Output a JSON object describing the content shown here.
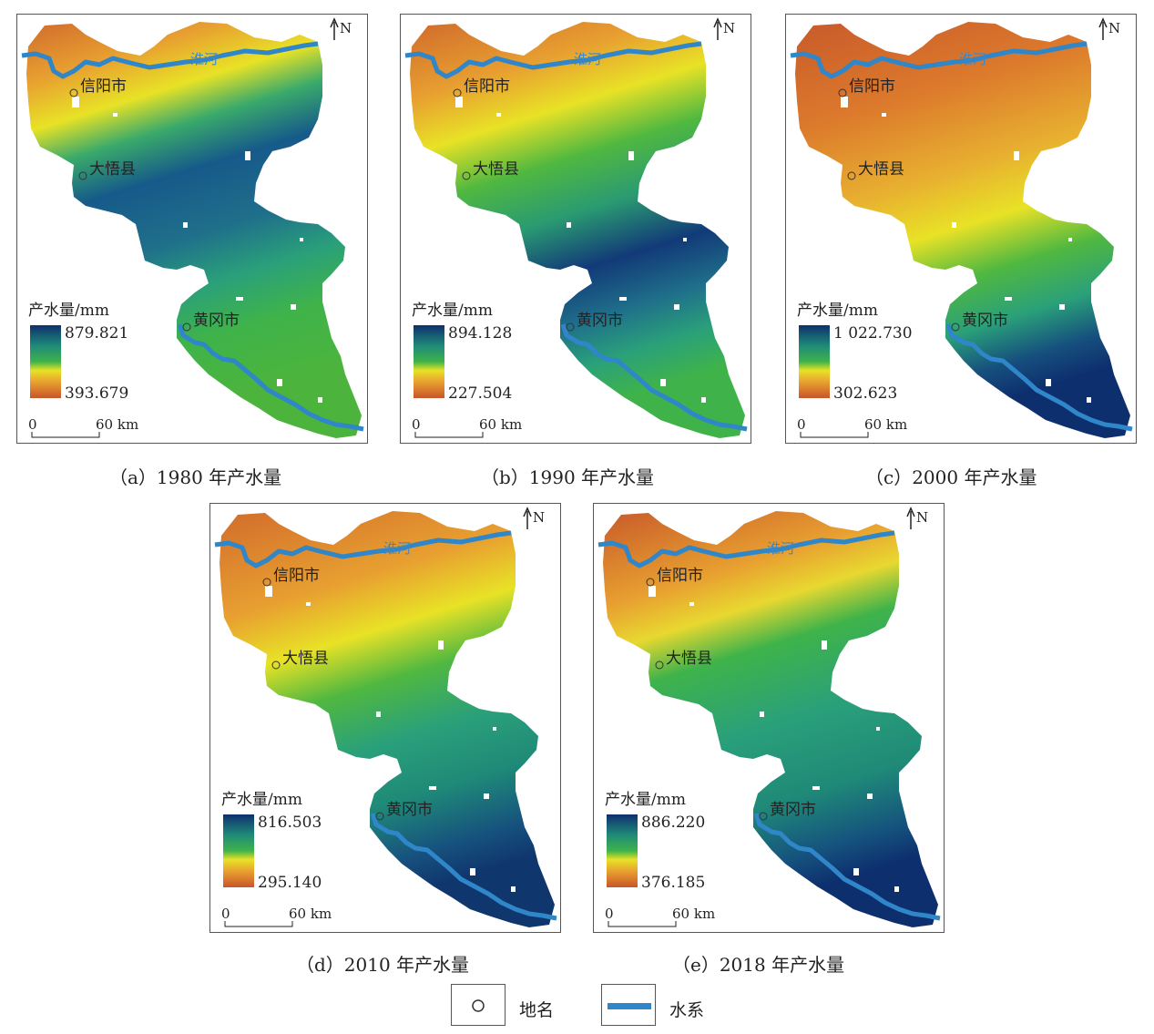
{
  "panels": [
    {
      "id": "a",
      "caption": "（a）1980 年产水量",
      "legend_title": "产水量/mm",
      "legend_max": "879.821",
      "legend_min": "393.679",
      "gradient": [
        [
          0,
          "#0e2f6e"
        ],
        [
          0.28,
          "#1f8a78"
        ],
        [
          0.5,
          "#3fb34a"
        ],
        [
          0.62,
          "#e8e226"
        ],
        [
          0.78,
          "#e8a030"
        ],
        [
          1,
          "#c8552a"
        ]
      ],
      "field": "a"
    },
    {
      "id": "b",
      "caption": "（b）1990 年产水量",
      "legend_title": "产水量/mm",
      "legend_max": "894.128",
      "legend_min": "227.504",
      "gradient": [
        [
          0,
          "#0e2f6e"
        ],
        [
          0.28,
          "#1f8a78"
        ],
        [
          0.5,
          "#3fb34a"
        ],
        [
          0.62,
          "#e8e226"
        ],
        [
          0.78,
          "#e8a030"
        ],
        [
          1,
          "#c8552a"
        ]
      ],
      "field": "b"
    },
    {
      "id": "c",
      "caption": "（c）2000 年产水量",
      "legend_title": "产水量/mm",
      "legend_max": "1 022.730",
      "legend_min": "302.623",
      "gradient": [
        [
          0,
          "#0e2f6e"
        ],
        [
          0.28,
          "#1f8a78"
        ],
        [
          0.5,
          "#3fb34a"
        ],
        [
          0.62,
          "#e8e226"
        ],
        [
          0.78,
          "#e8a030"
        ],
        [
          1,
          "#c8552a"
        ]
      ],
      "field": "c"
    },
    {
      "id": "d",
      "caption": "（d）2010 年产水量",
      "legend_title": "产水量/mm",
      "legend_max": "816.503",
      "legend_min": "295.140",
      "gradient": [
        [
          0,
          "#0e2f6e"
        ],
        [
          0.28,
          "#1f8a78"
        ],
        [
          0.5,
          "#3fb34a"
        ],
        [
          0.62,
          "#e8e226"
        ],
        [
          0.78,
          "#e8a030"
        ],
        [
          1,
          "#c8552a"
        ]
      ],
      "field": "d"
    },
    {
      "id": "e",
      "caption": "（e）2018 年产水量",
      "legend_title": "产水量/mm",
      "legend_max": "886.220",
      "legend_min": "376.185",
      "gradient": [
        [
          0,
          "#0e2f6e"
        ],
        [
          0.28,
          "#1f8a78"
        ],
        [
          0.5,
          "#3fb34a"
        ],
        [
          0.62,
          "#e8e226"
        ],
        [
          0.78,
          "#e8a030"
        ],
        [
          1,
          "#c8552a"
        ]
      ],
      "field": "e"
    }
  ],
  "places": {
    "city1": "信阳市",
    "county": "大悟县",
    "city2": "黄冈市",
    "river": "淮河"
  },
  "north": "N",
  "scalebar": {
    "zero": "0",
    "dist": "60 km"
  },
  "legend": {
    "place_label": "地名",
    "river_label": "水系",
    "river_color": "#2f86c8"
  }
}
